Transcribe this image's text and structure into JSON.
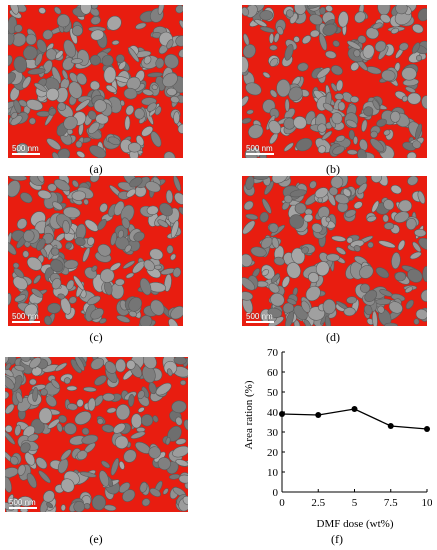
{
  "panels": [
    {
      "id": "a",
      "caption": "(a)",
      "scale_label": "500 nm",
      "seed": 11
    },
    {
      "id": "b",
      "caption": "(b)",
      "scale_label": "500 nm",
      "seed": 23
    },
    {
      "id": "c",
      "caption": "(c)",
      "scale_label": "500 nm",
      "seed": 37
    },
    {
      "id": "d",
      "caption": "(d)",
      "scale_label": "500 nm",
      "seed": 51
    },
    {
      "id": "e",
      "caption": "(e)",
      "scale_label": "500 nm",
      "seed": 67
    }
  ],
  "panel_colors": {
    "background": "#e81d10",
    "particle": "#8a8a8a",
    "particle_edge": "#5a5a5a"
  },
  "chart_caption": "(f)",
  "chart_data": {
    "type": "line",
    "x": [
      0,
      2.5,
      5,
      7.5,
      10
    ],
    "values": [
      39,
      38.5,
      41.5,
      33,
      31.5
    ],
    "xticks": [
      "0",
      "2.5",
      "5",
      "7.5",
      "10"
    ],
    "yticks": [
      "0",
      "10",
      "20",
      "30",
      "40",
      "50",
      "60",
      "70"
    ],
    "xlabel": "DMF dose (wt%)",
    "ylabel": "Area ration (%)",
    "xlim": [
      0,
      10
    ],
    "ylim": [
      0,
      70
    ],
    "grid": false,
    "marker": "circle",
    "color": "#000000"
  }
}
